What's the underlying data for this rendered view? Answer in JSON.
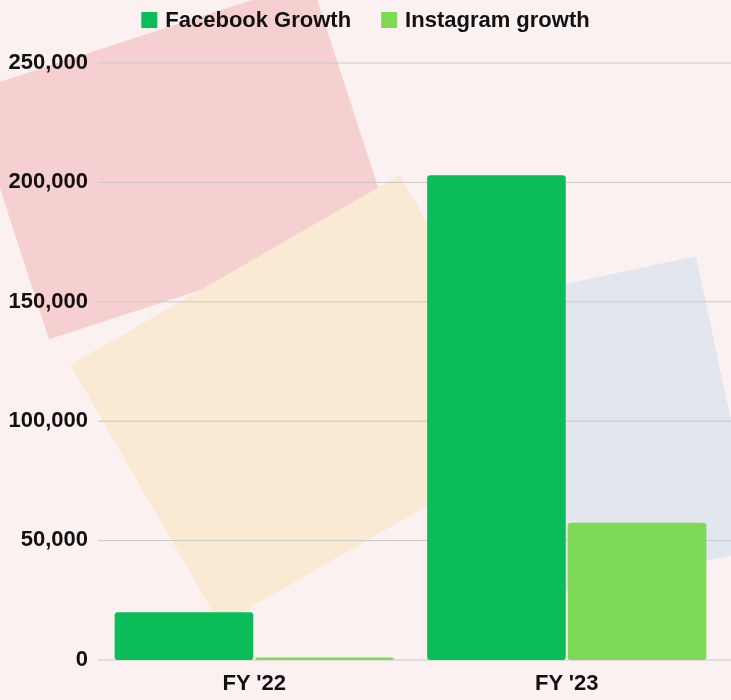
{
  "chart_data": {
    "type": "bar",
    "categories": [
      "FY '22",
      "FY '23"
    ],
    "series": [
      {
        "name": "Facebook Growth",
        "color": "#0bbd58",
        "values": [
          20000,
          203000
        ]
      },
      {
        "name": "Instagram growth",
        "color": "#7ed957",
        "values": [
          1000,
          57500
        ]
      }
    ],
    "ylim": [
      0,
      250000
    ],
    "yticks": [
      0,
      {
        "value": 50000,
        "label": "50,000"
      },
      {
        "value": 100000,
        "label": "100,000"
      },
      {
        "value": 150000,
        "label": "150,000"
      },
      {
        "value": 200000,
        "label": "200,000"
      },
      {
        "value": 250000,
        "label": "250,000"
      }
    ],
    "grid": true,
    "legend": "top"
  }
}
